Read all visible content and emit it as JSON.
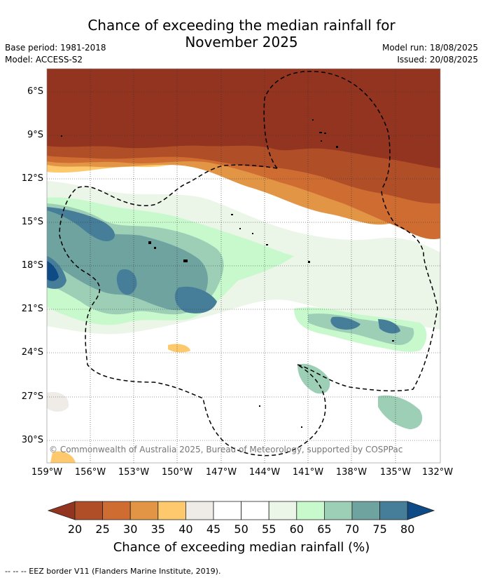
{
  "title_line1": "Chance of exceeding the median rainfall for",
  "title_line2": "November 2025",
  "meta": {
    "base_period": "Base period: 1981-2018",
    "model": "Model: ACCESS-S2",
    "model_run": "Model run: 18/08/2025",
    "issued": "Issued: 20/08/2025"
  },
  "lat_labels": [
    "6°S",
    "9°S",
    "12°S",
    "15°S",
    "18°S",
    "21°S",
    "24°S",
    "27°S",
    "30°S"
  ],
  "lon_labels": [
    "159°W",
    "156°W",
    "153°W",
    "150°W",
    "147°W",
    "144°W",
    "141°W",
    "138°W",
    "135°W",
    "132°W"
  ],
  "copyright": "© Commonwealth of Australia 2025, Bureau of Meteorology, supported by COSPPac",
  "colorbar": {
    "ticks": [
      "20",
      "25",
      "30",
      "35",
      "40",
      "45",
      "50",
      "55",
      "60",
      "65",
      "70",
      "75",
      "80"
    ],
    "colors": [
      "#933420",
      "#b04e27",
      "#cf6c32",
      "#e19545",
      "#fec96c",
      "#efebe6",
      "#ffffff",
      "#ffffff",
      "#ebf6e8",
      "#c8f9cc",
      "#9ccfb6",
      "#6fa3a0",
      "#467e99",
      "#0e4a86"
    ],
    "label": "Chance of exceeding median rainfall (%)"
  },
  "footnote": "--  --  -- EEZ border V11 (Flanders Marine Institute, 2019)."
}
